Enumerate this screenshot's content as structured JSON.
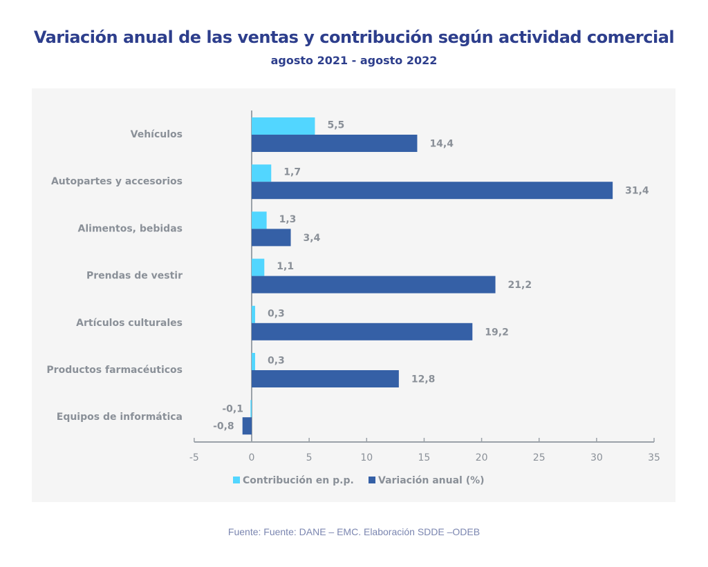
{
  "colors": {
    "title": "#2d3e8c",
    "contribution": "#52d6ff",
    "variation": "#3560a6",
    "text": "#8a9098",
    "axis": "#9aa1a8",
    "source": "#7b86b0"
  },
  "chart_data": {
    "type": "bar",
    "orientation": "horizontal",
    "title": "Variación anual de las ventas y contribución según actividad comercial",
    "subtitle": "agosto 2021  - agosto 2022",
    "categories": [
      "Vehículos",
      "Autopartes y accesorios",
      "Alimentos, bebidas",
      "Prendas de vestir",
      "Artículos culturales",
      "Productos farmacéuticos",
      "Equipos de informática"
    ],
    "series": [
      {
        "name": "Contribución en p.p.",
        "values": [
          5.5,
          1.7,
          1.3,
          1.1,
          0.3,
          0.3,
          -0.1
        ],
        "labels": [
          "5,5",
          "1,7",
          "1,3",
          "1,1",
          "0,3",
          "0,3",
          "-0,1"
        ]
      },
      {
        "name": "Variación anual (%)",
        "values": [
          14.4,
          31.4,
          3.4,
          21.2,
          19.2,
          12.8,
          -0.8
        ],
        "labels": [
          "14,4",
          "31,4",
          "3,4",
          "21,2",
          "19,2",
          "12,8",
          "-0,8"
        ]
      }
    ],
    "xlim": [
      -5,
      35
    ],
    "xticks": [
      -5,
      0,
      5,
      10,
      15,
      20,
      25,
      30,
      35
    ],
    "xlabel": "",
    "ylabel": "",
    "grid": false,
    "legend": "bottom"
  },
  "source": "Fuente: Fuente: DANE – EMC. Elaboración SDDE –ODEB"
}
